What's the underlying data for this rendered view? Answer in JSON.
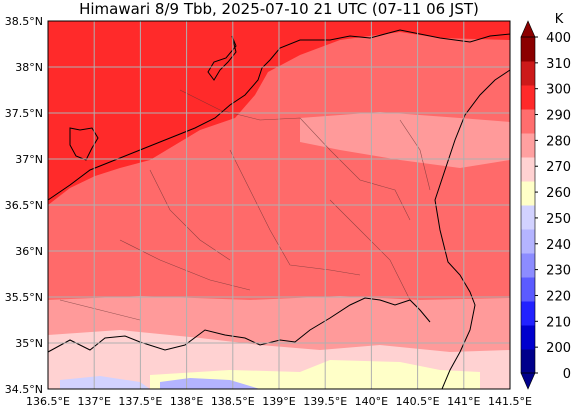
{
  "title": "Himawari 8/9 Tbb, 2025-07-10 21 UTC (07-11 06 JST)",
  "map": {
    "lon_range": [
      136.5,
      141.5
    ],
    "lat_range": [
      34.5,
      38.5
    ],
    "gridlines": true,
    "x_ticks": [
      "136.5°E",
      "137°E",
      "137.5°E",
      "138°E",
      "138.5°E",
      "139°E",
      "139.5°E",
      "140°E",
      "140.5°E",
      "141°E",
      "141.5°E"
    ],
    "y_ticks": [
      "38.5°N",
      "38°N",
      "37.5°N",
      "37°N",
      "36.5°N",
      "36°N",
      "35.5°N",
      "35°N",
      "34.5°N"
    ]
  },
  "colorbar": {
    "unit": "K",
    "tick_labels": [
      "0",
      "200",
      "210",
      "220",
      "230",
      "240",
      "250",
      "260",
      "270",
      "280",
      "290",
      "300",
      "310",
      "400"
    ],
    "colors": [
      "#00008b",
      "#0000cd",
      "#2222ff",
      "#5b5bff",
      "#8c8cff",
      "#b4b4ff",
      "#d2d2ff",
      "#ffffc8",
      "#ffd2d2",
      "#ffa0a0",
      "#ff6e6e",
      "#ff2a2a",
      "#cc1a1a",
      "#8b0000"
    ],
    "extend_both": true
  },
  "colors": {
    "warm_region": "#ff6a6a",
    "hot_region": "#ff2a2a",
    "cooler_band": "#ff9a9a",
    "coast_line": "#000000",
    "grid_line": "#b0b0b0"
  }
}
